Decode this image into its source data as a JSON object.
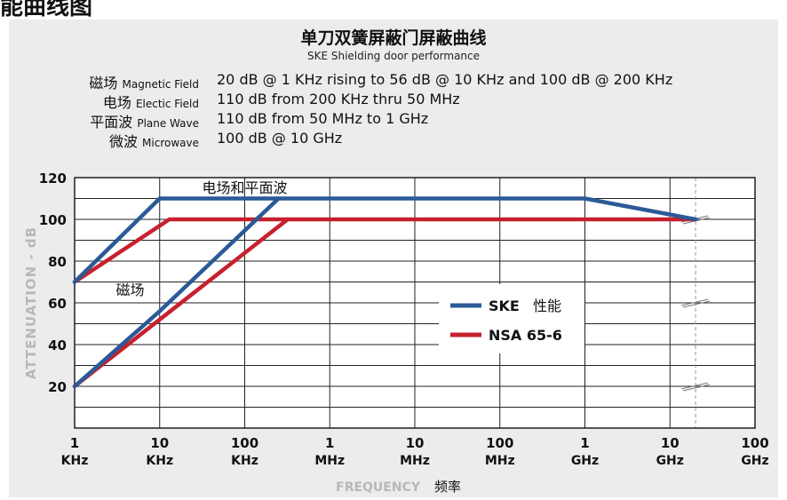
{
  "page_heading": "能曲线图",
  "colors": {
    "ske": "#2a5a97",
    "nsa": "#c8202e",
    "panel": "#ececec",
    "ylabel_gray": "#b8b8b8"
  },
  "specs": [
    {
      "cn": "磁场",
      "en": "Magnetic Field",
      "value": "20 dB @ 1 KHz rising to 56 dB @ 10 KHz and 100 dB @ 200 KHz"
    },
    {
      "cn": "电场",
      "en": "Electic Field",
      "value": "110 dB from 200 KHz thru 50 MHz"
    },
    {
      "cn": "平面波",
      "en": "Plane Wave",
      "value": "110 dB from 50 MHz to 1 GHz"
    },
    {
      "cn": "微波",
      "en": "Microwave",
      "value": "100 dB @ 10 GHz"
    }
  ],
  "chart_data": {
    "type": "line",
    "title": "单刀双簧屏蔽门屏蔽曲线",
    "subtitle": "SKE Shielding door performance",
    "xlabel": "FREQUENCY",
    "xlabel_cn": "频率",
    "ylabel": "ATTENUATION - dB",
    "x_scale": "log",
    "x_unit": "Hz",
    "xlim": [
      1000,
      100000000000
    ],
    "ylim": [
      0,
      120
    ],
    "x_ticks": [
      {
        "value": 1000,
        "num": "1",
        "unit": "KHz"
      },
      {
        "value": 10000,
        "num": "10",
        "unit": "KHz"
      },
      {
        "value": 100000,
        "num": "100",
        "unit": "KHz"
      },
      {
        "value": 1000000,
        "num": "1",
        "unit": "MHz"
      },
      {
        "value": 10000000,
        "num": "10",
        "unit": "MHz"
      },
      {
        "value": 100000000,
        "num": "100",
        "unit": "MHz"
      },
      {
        "value": 1000000000,
        "num": "1",
        "unit": "GHz"
      },
      {
        "value": 10000000000,
        "num": "10",
        "unit": "GHz"
      },
      {
        "value": 100000000000,
        "num": "100",
        "unit": "GHz"
      }
    ],
    "y_ticks": [
      20,
      40,
      60,
      80,
      100,
      120
    ],
    "grid": true,
    "series": [
      {
        "name": "SKE",
        "label_suffix": "性能",
        "color": "#2a5a97",
        "paths": [
          [
            [
              1000,
              70
            ],
            [
              10000,
              110
            ],
            [
              1000000000,
              110
            ],
            [
              20000000000,
              100
            ]
          ],
          [
            [
              1000,
              20
            ],
            [
              10000,
              56
            ],
            [
              250000,
              110
            ]
          ]
        ]
      },
      {
        "name": "NSA 65-6",
        "label_suffix": "",
        "color": "#c8202e",
        "paths": [
          [
            [
              1000,
              70
            ],
            [
              13000,
              100
            ],
            [
              20000000000,
              100
            ]
          ],
          [
            [
              1000,
              20
            ],
            [
              10000,
              52
            ],
            [
              320000,
              100
            ]
          ]
        ]
      }
    ],
    "annotations": [
      {
        "text": "电场和平面波",
        "x": 100000,
        "y": 115
      },
      {
        "text": "磁场",
        "x": 4500,
        "y": 66
      }
    ],
    "legend": "center-right"
  }
}
